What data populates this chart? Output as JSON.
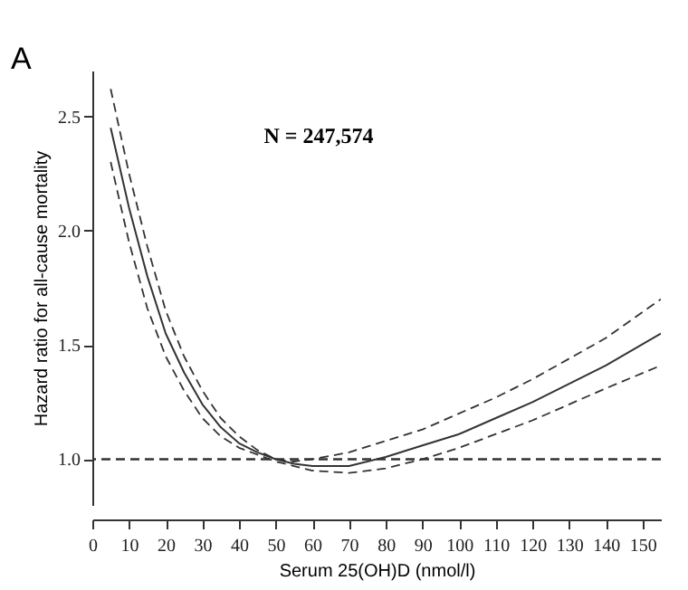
{
  "chart_data": {
    "type": "line",
    "xlabel": "Serum 25(OH)D (nmol/l)",
    "ylabel": "Hazard ratio for all-cause mortality",
    "annotations": [
      "A",
      "N = 247,574"
    ],
    "x": [
      5,
      10,
      15,
      20,
      25,
      30,
      35,
      40,
      45,
      50,
      55,
      60,
      70,
      80,
      90,
      100,
      110,
      120,
      130,
      140,
      155
    ],
    "series": [
      {
        "color": "#333333",
        "line_style": "solid",
        "values": [
          2.45,
          2.1,
          1.8,
          1.55,
          1.38,
          1.24,
          1.14,
          1.07,
          1.03,
          1.0,
          0.98,
          0.97,
          0.97,
          1.01,
          1.06,
          1.11,
          1.18,
          1.25,
          1.33,
          1.41,
          1.55
        ]
      },
      {
        "color": "#333333",
        "line_style": "dashed",
        "values": [
          2.3,
          1.95,
          1.66,
          1.45,
          1.3,
          1.18,
          1.1,
          1.05,
          1.02,
          0.99,
          0.97,
          0.95,
          0.94,
          0.96,
          1.0,
          1.05,
          1.11,
          1.17,
          1.24,
          1.31,
          1.41
        ]
      },
      {
        "color": "#333333",
        "line_style": "dashed",
        "values": [
          2.62,
          2.25,
          1.93,
          1.65,
          1.45,
          1.3,
          1.18,
          1.1,
          1.04,
          1.0,
          0.99,
          1.0,
          1.03,
          1.08,
          1.13,
          1.2,
          1.27,
          1.35,
          1.44,
          1.53,
          1.7
        ]
      }
    ],
    "ref_lines": [
      {
        "axis": "y",
        "value": 1.0,
        "color": "#333333",
        "line_style": "dashed"
      }
    ],
    "xlim": [
      0,
      155
    ],
    "xticks": [
      0,
      10,
      20,
      30,
      40,
      50,
      60,
      70,
      80,
      90,
      100,
      110,
      120,
      130,
      140,
      150
    ],
    "ylim": [
      0.8,
      2.7
    ],
    "yticks": [
      {
        "value": 1,
        "label": "1.0"
      },
      1.5,
      {
        "value": 2,
        "label": "2.0"
      },
      2.5
    ],
    "grid": false,
    "marker": "none"
  }
}
